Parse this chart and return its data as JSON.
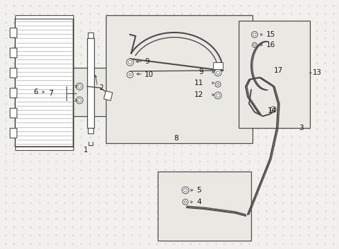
{
  "bg_color": "#f2f0ec",
  "line_color": "#4a4a4a",
  "box_bg": "#eae8e3",
  "white": "#ffffff",
  "label_color": "#111111",
  "dot_color": "#c0bdb8"
}
